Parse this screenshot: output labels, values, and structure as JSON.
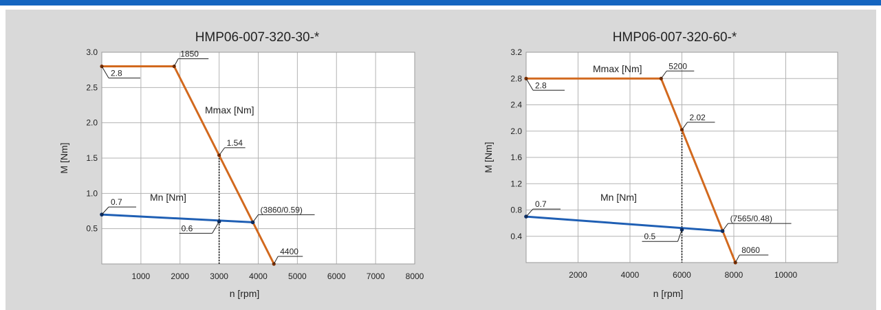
{
  "colors": {
    "top_bar": "#1565c0",
    "panel_bg": "#d9d9d9",
    "plot_bg": "#ffffff",
    "grid": "#b3b3b3",
    "mmax": "#d2691e",
    "mn": "#1f5fb4",
    "marker": "#1a1a1a"
  },
  "chart_data": [
    {
      "type": "line",
      "title": "HMP06-007-320-30-*",
      "xlabel": "n [rpm]",
      "ylabel": "M [Nm]",
      "xlim": [
        0,
        8000
      ],
      "ylim": [
        0,
        3.0
      ],
      "x_ticks": [
        1000,
        2000,
        3000,
        4000,
        5000,
        6000,
        7000,
        8000
      ],
      "x_tick_labels": [
        "1000",
        "2000",
        "3000",
        "4000",
        "5000",
        "6000",
        "7000",
        "8000"
      ],
      "y_ticks": [
        0.5,
        1.0,
        1.5,
        2.0,
        2.5,
        3.0
      ],
      "y_tick_labels": [
        "0.5",
        "1.0",
        "1.5",
        "2.0",
        "2.5",
        "3.0"
      ],
      "grid": true,
      "series": [
        {
          "name": "Mmax [Nm]",
          "color": "#d2691e",
          "points": [
            [
              0,
              2.8
            ],
            [
              1850,
              2.8
            ],
            [
              3000,
              1.54
            ],
            [
              4400,
              0.0
            ]
          ]
        },
        {
          "name": "Mn [Nm]",
          "color": "#1f5fb4",
          "points": [
            [
              0,
              0.7
            ],
            [
              3860,
              0.59
            ]
          ]
        }
      ],
      "markers": [
        [
          0,
          0.7
        ],
        [
          3000,
          0.6
        ],
        [
          3860,
          0.59
        ]
      ],
      "annotations": [
        {
          "text": "2.8",
          "x": 0,
          "y": 2.8
        },
        {
          "text": "1850",
          "x": 1850,
          "y": 2.8
        },
        {
          "text": "1.54",
          "x": 3000,
          "y": 1.54
        },
        {
          "text": "0.7",
          "x": 0,
          "y": 0.7
        },
        {
          "text": "(3860/0.59)",
          "x": 3860,
          "y": 0.59
        },
        {
          "text": "0.6",
          "x": 3000,
          "y": 0.6
        },
        {
          "text": "4400",
          "x": 4400,
          "y": 0.0
        }
      ],
      "vline_x": 3000
    },
    {
      "type": "line",
      "title": "HMP06-007-320-60-*",
      "xlabel": "n [rpm]",
      "ylabel": "M [Nm]",
      "xlim": [
        0,
        12000
      ],
      "ylim": [
        0,
        3.2
      ],
      "x_ticks": [
        2000,
        4000,
        6000,
        8000,
        10000
      ],
      "x_tick_labels": [
        "2000",
        "4000",
        "6000",
        "8000",
        "10000"
      ],
      "y_ticks": [
        0.4,
        0.8,
        1.2,
        1.6,
        2.0,
        2.4,
        2.8,
        3.2
      ],
      "y_tick_labels": [
        "0.4",
        "0.8",
        "1.2",
        "1.6",
        "2.0",
        "2.4",
        "2.8",
        "3.2"
      ],
      "grid": true,
      "series": [
        {
          "name": "Mmax [Nm]",
          "color": "#d2691e",
          "points": [
            [
              0,
              2.8
            ],
            [
              5200,
              2.8
            ],
            [
              6000,
              2.02
            ],
            [
              8060,
              0.0
            ]
          ]
        },
        {
          "name": "Mn [Nm]",
          "color": "#1f5fb4",
          "points": [
            [
              0,
              0.7
            ],
            [
              7565,
              0.48
            ]
          ]
        }
      ],
      "markers": [
        [
          0,
          0.7
        ],
        [
          6000,
          0.5
        ],
        [
          7565,
          0.48
        ]
      ],
      "annotations": [
        {
          "text": "2.8",
          "x": 0,
          "y": 2.8
        },
        {
          "text": "5200",
          "x": 5200,
          "y": 2.8
        },
        {
          "text": "2.02",
          "x": 6000,
          "y": 2.02
        },
        {
          "text": "0.7",
          "x": 0,
          "y": 0.7
        },
        {
          "text": "(7565/0.48)",
          "x": 7565,
          "y": 0.48
        },
        {
          "text": "0.5",
          "x": 6000,
          "y": 0.5
        },
        {
          "text": "8060",
          "x": 8060,
          "y": 0.0
        }
      ],
      "vline_x": 6000
    }
  ]
}
